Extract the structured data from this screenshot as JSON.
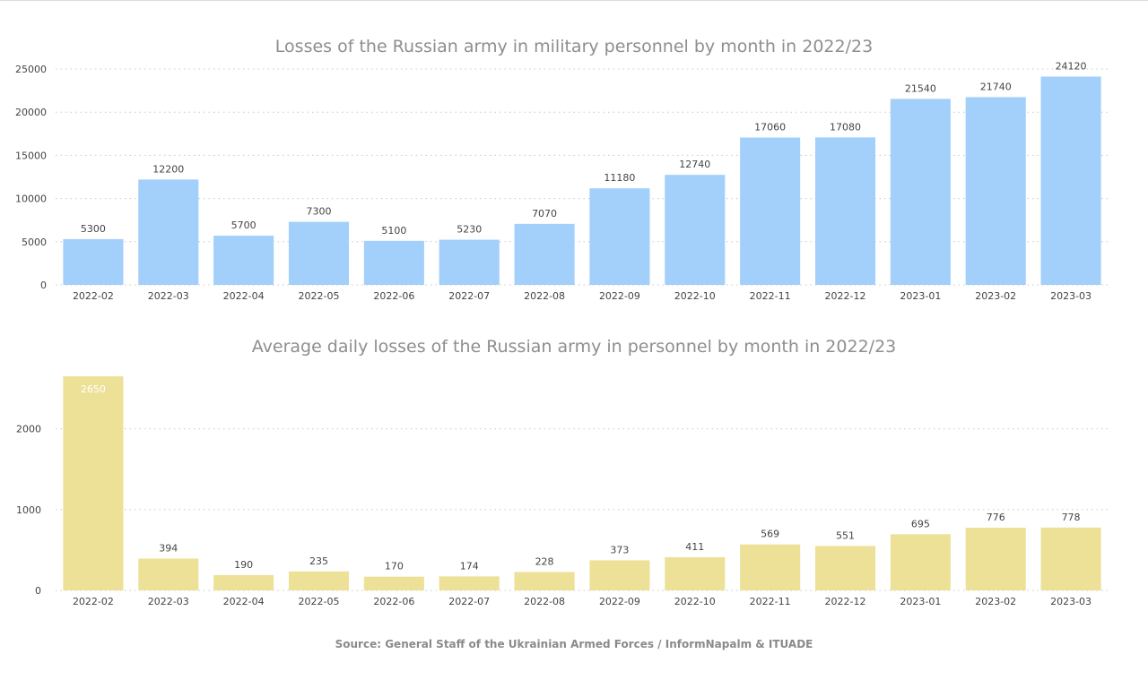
{
  "source": "Source: General Staff of the Ukrainian Armed Forces / InformNapalm & ITUADE",
  "chart_data": [
    {
      "type": "bar",
      "title": "Losses of the Russian army in military personnel by month in 2022/23",
      "xlabel": "",
      "ylabel": "",
      "grid": true,
      "color": "#a3cffb",
      "ylim": [
        0,
        25000
      ],
      "yticks": [
        0,
        5000,
        10000,
        15000,
        20000,
        25000
      ],
      "categories": [
        "2022-02",
        "2022-03",
        "2022-04",
        "2022-05",
        "2022-06",
        "2022-07",
        "2022-08",
        "2022-09",
        "2022-10",
        "2022-11",
        "2022-12",
        "2023-01",
        "2023-02",
        "2023-03"
      ],
      "values": [
        5300,
        12200,
        5700,
        7300,
        5100,
        5230,
        7070,
        11180,
        12740,
        17060,
        17080,
        21540,
        21740,
        24120
      ]
    },
    {
      "type": "bar",
      "title": "Average daily losses of the Russian army in personnel by month in 2022/23",
      "xlabel": "",
      "ylabel": "",
      "grid": true,
      "color": "#ede198",
      "ylim": [
        0,
        2650
      ],
      "yticks": [
        0,
        1000,
        2000
      ],
      "categories": [
        "2022-02",
        "2022-03",
        "2022-04",
        "2022-05",
        "2022-06",
        "2022-07",
        "2022-08",
        "2022-09",
        "2022-10",
        "2022-11",
        "2022-12",
        "2023-01",
        "2023-02",
        "2023-03"
      ],
      "values": [
        2650,
        394,
        190,
        235,
        170,
        174,
        228,
        373,
        411,
        569,
        551,
        695,
        776,
        778
      ]
    }
  ]
}
